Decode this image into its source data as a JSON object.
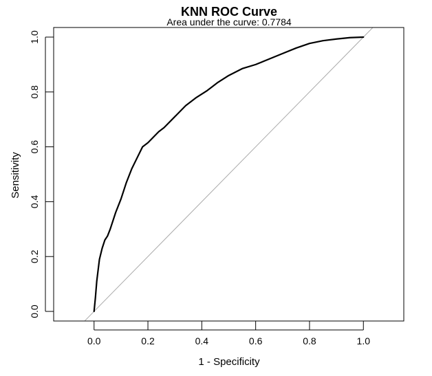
{
  "chart_data": {
    "type": "line",
    "title": "KNN ROC Curve",
    "subtitle": "Area under the curve: 0.7784",
    "xlabel": "1 - Specificity",
    "ylabel": "Sensitivity",
    "xlim": [
      -0.15,
      1.15
    ],
    "ylim": [
      -0.035,
      1.035
    ],
    "x_ticks": [
      0.0,
      0.2,
      0.4,
      0.6,
      0.8,
      1.0
    ],
    "x_tick_labels": [
      "0.0",
      "0.2",
      "0.4",
      "0.6",
      "0.8",
      "1.0"
    ],
    "y_ticks": [
      0.0,
      0.2,
      0.4,
      0.6,
      0.8,
      1.0
    ],
    "y_tick_labels": [
      "0.0",
      "0.2",
      "0.4",
      "0.6",
      "0.8",
      "1.0"
    ],
    "grid": false,
    "series": [
      {
        "color": "#000000",
        "x": [
          0.0,
          0.005,
          0.01,
          0.015,
          0.02,
          0.03,
          0.04,
          0.05,
          0.06,
          0.08,
          0.1,
          0.12,
          0.14,
          0.16,
          0.18,
          0.2,
          0.22,
          0.24,
          0.26,
          0.3,
          0.34,
          0.38,
          0.42,
          0.46,
          0.5,
          0.55,
          0.6,
          0.65,
          0.7,
          0.75,
          0.8,
          0.85,
          0.9,
          0.95,
          1.0
        ],
        "y": [
          0.0,
          0.05,
          0.11,
          0.15,
          0.19,
          0.23,
          0.26,
          0.275,
          0.3,
          0.36,
          0.41,
          0.47,
          0.52,
          0.56,
          0.6,
          0.615,
          0.635,
          0.655,
          0.67,
          0.71,
          0.75,
          0.78,
          0.805,
          0.835,
          0.86,
          0.885,
          0.9,
          0.92,
          0.94,
          0.96,
          0.977,
          0.987,
          0.993,
          0.998,
          1.0
        ]
      }
    ],
    "reference_line": {
      "type": "diagonal",
      "color": "#aaaaaa"
    }
  }
}
